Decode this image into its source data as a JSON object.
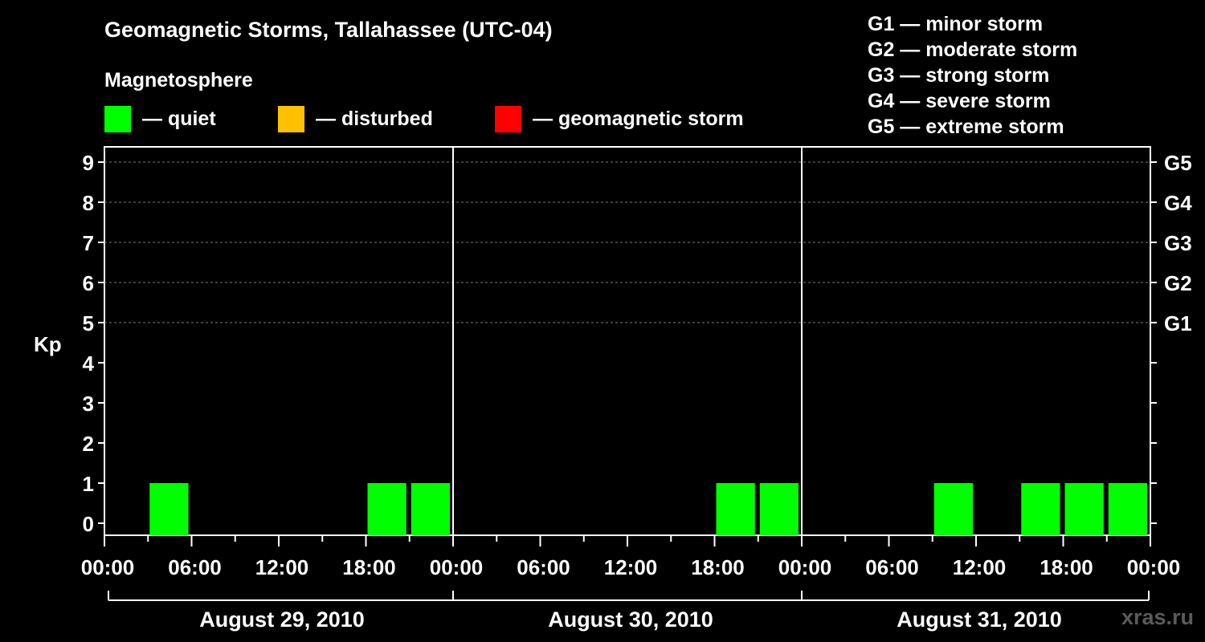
{
  "chart_data": {
    "type": "bar",
    "title": "Geomagnetic Storms, Tallahassee (UTC-04)",
    "ylabel": "Kp",
    "ylim": [
      0,
      9
    ],
    "yticks": [
      "0",
      "1",
      "2",
      "3",
      "4",
      "5",
      "6",
      "7",
      "8",
      "9"
    ],
    "storm_levels": [
      {
        "label": "G1",
        "kp": 5
      },
      {
        "label": "G2",
        "kp": 6
      },
      {
        "label": "G3",
        "kp": 7
      },
      {
        "label": "G4",
        "kp": 8
      },
      {
        "label": "G5",
        "kp": 9
      }
    ],
    "grid": "dashed horizontal at Kp 5-9",
    "days": [
      "August 29, 2010",
      "August 30, 2010",
      "August 31, 2010"
    ],
    "xticks": [
      "00:00",
      "06:00",
      "12:00",
      "18:00",
      "00:00",
      "06:00",
      "12:00",
      "18:00",
      "00:00",
      "06:00",
      "12:00",
      "18:00",
      "00:00"
    ],
    "interval_hours": 3,
    "bars": [
      {
        "day": 0,
        "start_hour": 3,
        "kp": 1,
        "level": "quiet"
      },
      {
        "day": 0,
        "start_hour": 18,
        "kp": 1,
        "level": "quiet"
      },
      {
        "day": 0,
        "start_hour": 21,
        "kp": 1,
        "level": "quiet"
      },
      {
        "day": 1,
        "start_hour": 18,
        "kp": 1,
        "level": "quiet"
      },
      {
        "day": 1,
        "start_hour": 21,
        "kp": 1,
        "level": "quiet"
      },
      {
        "day": 2,
        "start_hour": 9,
        "kp": 1,
        "level": "quiet"
      },
      {
        "day": 2,
        "start_hour": 15,
        "kp": 1,
        "level": "quiet"
      },
      {
        "day": 2,
        "start_hour": 18,
        "kp": 1,
        "level": "quiet"
      },
      {
        "day": 2,
        "start_hour": 21,
        "kp": 1,
        "level": "quiet"
      }
    ],
    "colors": {
      "quiet": "#00ff00",
      "disturbed": "#ffc000",
      "storm": "#ff0000"
    }
  },
  "legend": {
    "title": "Magnetosphere",
    "items": [
      {
        "key": "quiet",
        "label": "— quiet",
        "color": "#00ff00"
      },
      {
        "key": "disturbed",
        "label": "— disturbed",
        "color": "#ffc000"
      },
      {
        "key": "storm",
        "label": "— geomagnetic storm",
        "color": "#ff0000"
      }
    ]
  },
  "scale_legend": [
    "G1 — minor storm",
    "G2 — moderate storm",
    "G3 — strong storm",
    "G4 — severe storm",
    "G5 — extreme storm"
  ],
  "watermark": "xras.ru"
}
